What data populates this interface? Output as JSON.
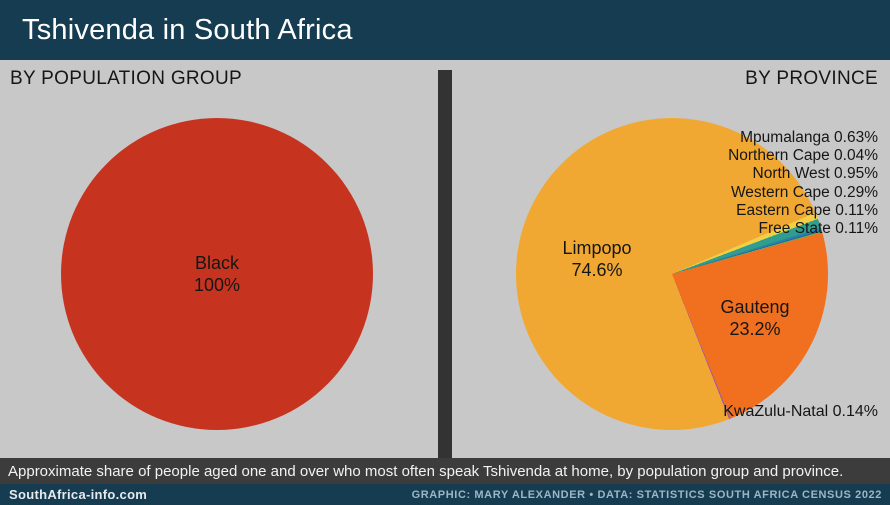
{
  "header": {
    "title": "Tshivenda in South Africa"
  },
  "panels": {
    "left": {
      "heading": "BY POPULATION GROUP",
      "slice_label": {
        "name": "Black",
        "pct": "100%"
      }
    },
    "right": {
      "heading": "BY PROVINCE",
      "limpopo_label": {
        "name": "Limpopo",
        "pct": "74.6%"
      },
      "gauteng_label": {
        "name": "Gauteng",
        "pct": "23.2%"
      },
      "kzn_label": "KwaZulu-Natal 0.14%",
      "callouts": [
        "Mpumalanga 0.63%",
        "Northern Cape 0.04%",
        "North West 0.95%",
        "Western Cape 0.29%",
        "Eastern Cape 0.11%",
        "Free State 0.11%"
      ]
    }
  },
  "caption": "Approximate share of people aged one and over who most often speak Tshivenda at home, by population group and province.",
  "footer": {
    "site": "SouthAfrica-info.com",
    "credit": "GRAPHIC: MARY ALEXANDER • DATA: STATISTICS SOUTH AFRICA CENSUS 2022"
  },
  "colors": {
    "header_navy": "#153c51",
    "panel_gray": "#c8c8c8",
    "divider_dark": "#333333",
    "caption_dark": "#3c3c3c",
    "black_group_red": "#c63420",
    "limpopo_yellow": "#f0a833",
    "gauteng_orange": "#f1701f"
  },
  "chart_data": [
    {
      "type": "pie",
      "title": "BY POPULATION GROUP",
      "labels": [
        "Black"
      ],
      "values": [
        100
      ],
      "colors": [
        "#c63420"
      ],
      "start_angle_deg_clockwise_from_top": 0,
      "legend_position": "none",
      "annotations": [
        "Black 100%"
      ]
    },
    {
      "type": "pie",
      "title": "BY PROVINCE",
      "labels": [
        "Limpopo",
        "Mpumalanga",
        "Northern Cape",
        "North West",
        "Western Cape",
        "Eastern Cape",
        "Free State",
        "Gauteng",
        "KwaZulu-Natal"
      ],
      "values": [
        74.6,
        0.63,
        0.04,
        0.95,
        0.29,
        0.11,
        0.11,
        23.2,
        0.14
      ],
      "colors": [
        "#f0a833",
        "#f2cf45",
        "#ded74f",
        "#2f9e8f",
        "#2b7fae",
        "#1f6390",
        "#6fb04a",
        "#f1701f",
        "#a05aa5"
      ],
      "start_angle_deg_clockwise_from_top": 158.5,
      "legend_position": "none",
      "annotations": [
        "Limpopo 74.6%",
        "Gauteng 23.2%",
        "Mpumalanga 0.63%",
        "Northern Cape 0.04%",
        "North West 0.95%",
        "Western Cape 0.29%",
        "Eastern Cape 0.11%",
        "Free State 0.11%",
        "KwaZulu-Natal 0.14%"
      ]
    }
  ]
}
